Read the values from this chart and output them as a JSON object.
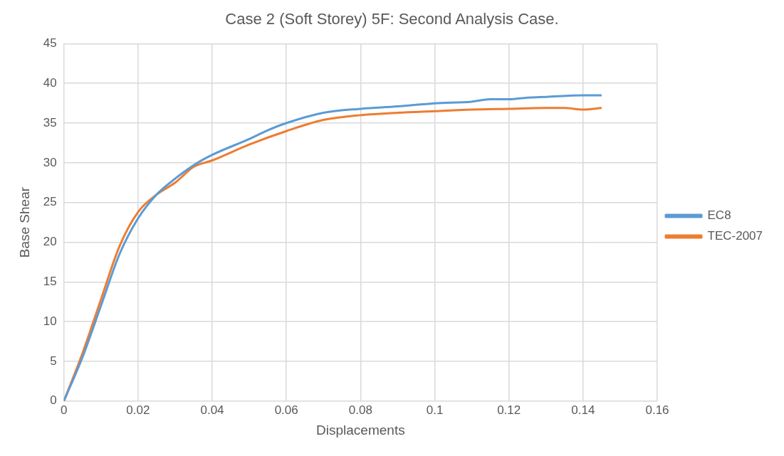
{
  "chart_data": {
    "type": "line",
    "title": "Case 2 (Soft Storey) 5F: Second Analysis Case.",
    "xlabel": "Displacements",
    "ylabel": "Base Shear",
    "xlim": [
      0,
      0.16
    ],
    "xticks": [
      0,
      0.02,
      0.04,
      0.06,
      0.08,
      0.1,
      0.12,
      0.14,
      0.16
    ],
    "ylim": [
      0,
      45
    ],
    "yticks": [
      0,
      5,
      10,
      15,
      20,
      25,
      30,
      35,
      40,
      45
    ],
    "grid": true,
    "legend": "right",
    "marker": "none",
    "series": [
      {
        "name": "EC8",
        "color": "#5b9bd5",
        "x": [
          0,
          0.005,
          0.01,
          0.015,
          0.02,
          0.025,
          0.03,
          0.035,
          0.04,
          0.05,
          0.055,
          0.06,
          0.07,
          0.08,
          0.09,
          0.1,
          0.11,
          0.115,
          0.12,
          0.125,
          0.13,
          0.14,
          0.145
        ],
        "values": [
          0,
          5.5,
          12,
          18.5,
          23,
          26,
          28,
          29.7,
          31,
          33,
          34.1,
          35,
          36.3,
          36.8,
          37.1,
          37.5,
          37.7,
          38,
          38,
          38.2,
          38.3,
          38.5,
          38.5
        ]
      },
      {
        "name": "TEC-2007",
        "color": "#ed7d31",
        "x": [
          0,
          0.005,
          0.01,
          0.015,
          0.02,
          0.025,
          0.03,
          0.035,
          0.04,
          0.05,
          0.06,
          0.07,
          0.08,
          0.09,
          0.1,
          0.11,
          0.12,
          0.13,
          0.135,
          0.14,
          0.145
        ],
        "values": [
          0,
          6,
          12.8,
          19.5,
          23.8,
          26,
          27.5,
          29.5,
          30.3,
          32.3,
          34,
          35.4,
          36,
          36.3,
          36.5,
          36.7,
          36.8,
          36.9,
          36.9,
          36.7,
          36.9
        ]
      }
    ]
  }
}
